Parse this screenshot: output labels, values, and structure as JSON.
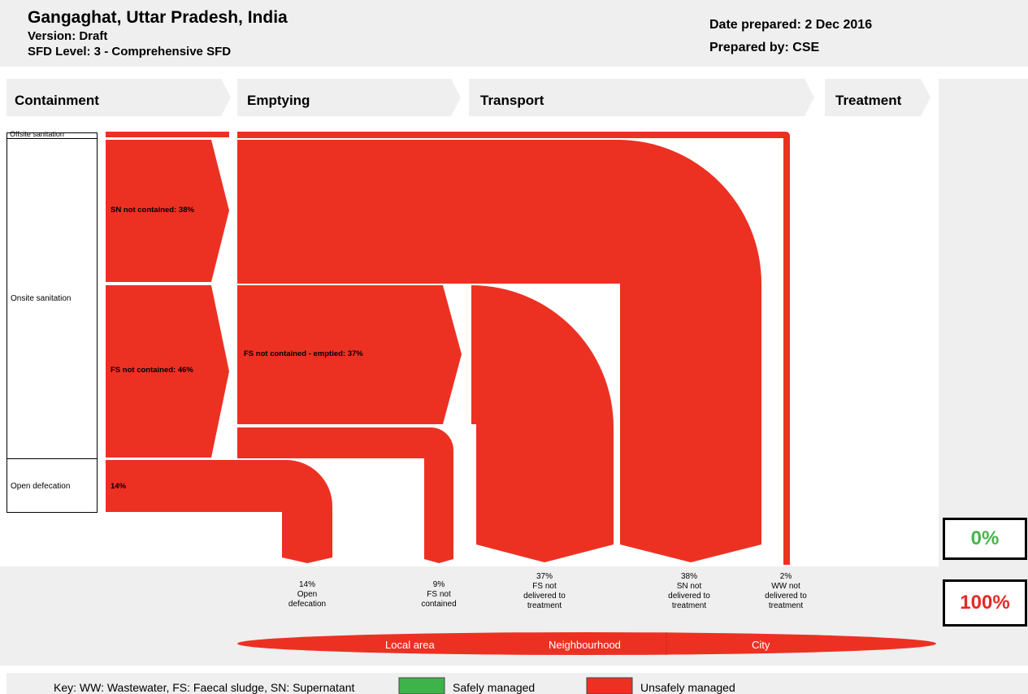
{
  "header": {
    "title": "Gangaghat, Uttar Pradesh, India",
    "version": "Version: Draft",
    "sfd_level": "SFD Level: 3 - Comprehensive SFD",
    "date_prepared": "Date prepared: 2 Dec 2016",
    "prepared_by": "Prepared by: CSE"
  },
  "stages": [
    "Containment",
    "Emptying",
    "Transport",
    "Treatment"
  ],
  "containment_categories": [
    "Offsite sanitation",
    "Onsite sanitation",
    "Open defecation"
  ],
  "flows": {
    "sn_not_contained": "SN not contained: 38%",
    "fs_not_contained": "FS not contained: 46%",
    "fs_emptied": "FS not contained - emptied: 37%",
    "open_defecation": "14%"
  },
  "outcomes": [
    {
      "pct": "14%",
      "label": "Open defecation"
    },
    {
      "pct": "9%",
      "label": "FS not contained"
    },
    {
      "pct": "37%",
      "label": "FS not delivered to treatment"
    },
    {
      "pct": "38%",
      "label": "SN not delivered to treatment"
    },
    {
      "pct": "2%",
      "label": "WW not delivered to treatment"
    }
  ],
  "scale": [
    "Local area",
    "Neighbourhood",
    "City"
  ],
  "totals": {
    "safe": "0%",
    "unsafe": "100%"
  },
  "key": {
    "abbreviations": "Key: WW: Wastewater, FS: Faecal sludge, SN: Supernatant",
    "safe": "Safely managed",
    "unsafe": "Unsafely managed"
  },
  "colors": {
    "safe": "#3cb44a",
    "unsafe": "#ec3123",
    "safe_text": "#45b649",
    "unsafe_text": "#e32b24",
    "panel": "#efefef"
  }
}
